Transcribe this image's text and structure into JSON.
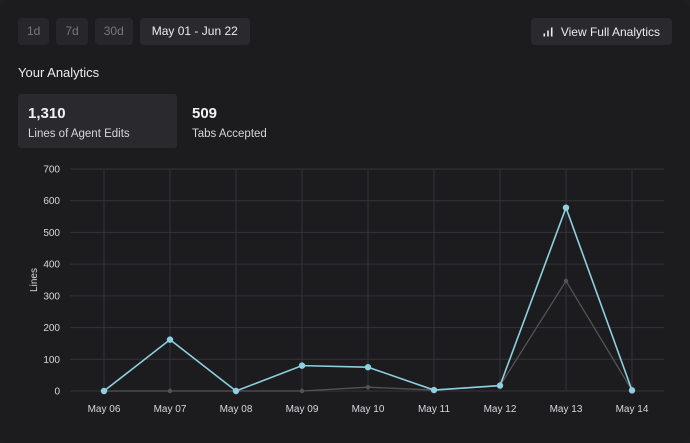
{
  "toolbar": {
    "ranges": [
      "1d",
      "7d",
      "30d"
    ],
    "date_range": "May 01 - Jun 22",
    "full_analytics_label": "View Full Analytics"
  },
  "section_title": "Your Analytics",
  "stats": [
    {
      "value": "1,310",
      "label": "Lines of Agent Edits"
    },
    {
      "value": "509",
      "label": "Tabs Accepted"
    }
  ],
  "colors": {
    "background": "#1c1c1f",
    "primary_series": "#8ecfe0",
    "secondary_series": "#545458",
    "grid": "#333338"
  },
  "chart_data": {
    "type": "line",
    "x": [
      "May 06",
      "May 07",
      "May 08",
      "May 09",
      "May 10",
      "May 11",
      "May 12",
      "May 13",
      "May 14"
    ],
    "series": [
      {
        "values": [
          0,
          162,
          0,
          80,
          75,
          3,
          17,
          578,
          2
        ],
        "color": "#8ecfe0",
        "markers": true
      },
      {
        "values": [
          0,
          0,
          0,
          0,
          12,
          3,
          17,
          347,
          2
        ],
        "color": "#545458",
        "markers": true
      }
    ],
    "ylabel": "Lines",
    "ylim": [
      0,
      700
    ],
    "yticks": [
      "0",
      "100",
      "200",
      "300",
      "400",
      "500",
      "600",
      "700"
    ],
    "grid": true
  }
}
